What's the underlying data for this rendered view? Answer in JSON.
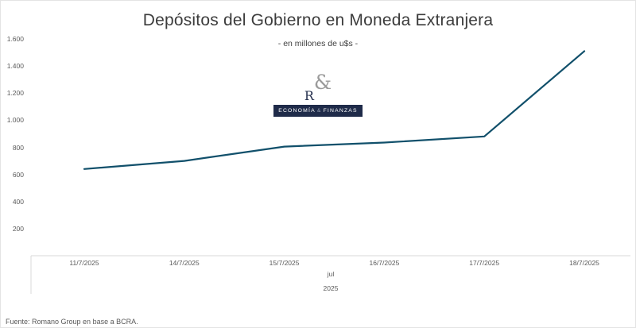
{
  "title": "Depósitos del Gobierno en Moneda Extranjera",
  "subtitle": "-  en millones de u$s  -",
  "logo": {
    "letter": "R",
    "amp": "&",
    "caption_left": "ECONOMÍA",
    "caption_amp": "&",
    "caption_right": "FINANZAS"
  },
  "axis": {
    "month_label": "jul",
    "year_label": "2025"
  },
  "footer": {
    "source": "Fuente: Romano Group en base a BCRA."
  },
  "chart_data": {
    "type": "line",
    "title": "Depósitos del Gobierno en Moneda Extranjera",
    "subtitle": "- en millones de u$s -",
    "unit": "millones de u$s",
    "categories": [
      "11/7/2025",
      "14/7/2025",
      "15/7/2025",
      "16/7/2025",
      "17/7/2025",
      "18/7/2025"
    ],
    "series": [
      {
        "name": "Depósitos del Gobierno en Moneda Extranjera",
        "values": [
          640,
          700,
          805,
          835,
          880,
          1510
        ]
      }
    ],
    "values": [
      640,
      700,
      805,
      835,
      880,
      1510
    ],
    "ylim": [
      0,
      1600
    ],
    "y_tick_step": 200,
    "y_tick_labels": [
      "1.600",
      "1.400",
      "1.200",
      "1.000",
      "800",
      "600",
      "400",
      "200"
    ],
    "x_group_labels": [
      "jul",
      "2025"
    ],
    "line_color": "#11506b",
    "axis_color": "#d9d9d9",
    "grid": false,
    "legend": "none"
  }
}
